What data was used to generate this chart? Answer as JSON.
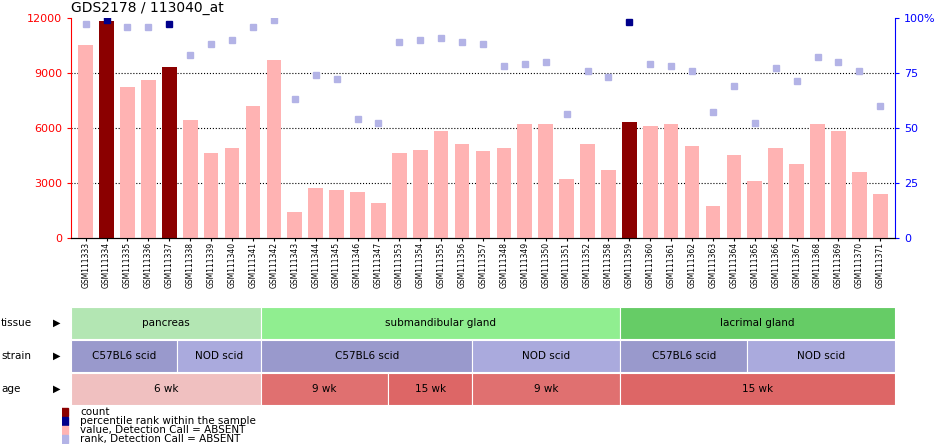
{
  "title": "GDS2178 / 113040_at",
  "samples": [
    "GSM111333",
    "GSM111334",
    "GSM111335",
    "GSM111336",
    "GSM111337",
    "GSM111338",
    "GSM111339",
    "GSM111340",
    "GSM111341",
    "GSM111342",
    "GSM111343",
    "GSM111344",
    "GSM111345",
    "GSM111346",
    "GSM111347",
    "GSM111353",
    "GSM111354",
    "GSM111355",
    "GSM111356",
    "GSM111357",
    "GSM111348",
    "GSM111349",
    "GSM111350",
    "GSM111351",
    "GSM111352",
    "GSM111358",
    "GSM111359",
    "GSM111360",
    "GSM111361",
    "GSM111362",
    "GSM111363",
    "GSM111364",
    "GSM111365",
    "GSM111366",
    "GSM111367",
    "GSM111368",
    "GSM111369",
    "GSM111370",
    "GSM111371"
  ],
  "bar_values": [
    10500,
    11800,
    8200,
    8600,
    9300,
    6400,
    4600,
    4900,
    7200,
    9700,
    1400,
    2700,
    2600,
    2500,
    1900,
    4600,
    4800,
    5800,
    5100,
    4700,
    4900,
    6200,
    6200,
    3200,
    5100,
    3700,
    6300,
    6100,
    6200,
    5000,
    1700,
    4500,
    3100,
    4900,
    4000,
    6200,
    5800,
    3600,
    2400
  ],
  "bar_highlight": [
    false,
    true,
    false,
    false,
    true,
    false,
    false,
    false,
    false,
    false,
    false,
    false,
    false,
    false,
    false,
    false,
    false,
    false,
    false,
    false,
    false,
    false,
    false,
    false,
    false,
    false,
    true,
    false,
    false,
    false,
    false,
    false,
    false,
    false,
    false,
    false,
    false,
    false,
    false
  ],
  "rank_values": [
    97,
    99,
    96,
    96,
    97,
    83,
    88,
    90,
    96,
    99,
    63,
    74,
    72,
    54,
    52,
    89,
    90,
    91,
    89,
    88,
    78,
    79,
    80,
    56,
    76,
    73,
    98,
    79,
    78,
    76,
    57,
    69,
    52,
    77,
    71,
    82,
    80,
    76,
    60
  ],
  "rank_highlight": [
    false,
    true,
    false,
    false,
    true,
    false,
    false,
    false,
    false,
    false,
    false,
    false,
    false,
    false,
    false,
    false,
    false,
    false,
    false,
    false,
    false,
    false,
    false,
    false,
    false,
    false,
    true,
    false,
    false,
    false,
    false,
    false,
    false,
    false,
    false,
    false,
    false,
    false,
    false
  ],
  "ylim_left": [
    0,
    12000
  ],
  "ylim_right": [
    0,
    100
  ],
  "yticks_left": [
    0,
    3000,
    6000,
    9000,
    12000
  ],
  "yticks_right": [
    0,
    25,
    50,
    75,
    100
  ],
  "bar_normal_color": "#ffb3b3",
  "bar_highlight_color": "#8b0000",
  "rank_normal_color": "#b3b3e6",
  "rank_highlight_color": "#00008b",
  "tissue_groups": [
    {
      "label": "pancreas",
      "start": 0,
      "end": 9,
      "color": "#b3e6b3"
    },
    {
      "label": "submandibular gland",
      "start": 9,
      "end": 26,
      "color": "#90ee90"
    },
    {
      "label": "lacrimal gland",
      "start": 26,
      "end": 39,
      "color": "#66cc66"
    }
  ],
  "strain_groups": [
    {
      "label": "C57BL6 scid",
      "start": 0,
      "end": 5,
      "color": "#9999cc"
    },
    {
      "label": "NOD scid",
      "start": 5,
      "end": 9,
      "color": "#aaaadd"
    },
    {
      "label": "C57BL6 scid",
      "start": 9,
      "end": 19,
      "color": "#9999cc"
    },
    {
      "label": "NOD scid",
      "start": 19,
      "end": 26,
      "color": "#aaaadd"
    },
    {
      "label": "C57BL6 scid",
      "start": 26,
      "end": 32,
      "color": "#9999cc"
    },
    {
      "label": "NOD scid",
      "start": 32,
      "end": 39,
      "color": "#aaaadd"
    }
  ],
  "age_groups": [
    {
      "label": "6 wk",
      "start": 0,
      "end": 9,
      "color": "#f0c0c0"
    },
    {
      "label": "9 wk",
      "start": 9,
      "end": 15,
      "color": "#e07070"
    },
    {
      "label": "15 wk",
      "start": 15,
      "end": 19,
      "color": "#dd6666"
    },
    {
      "label": "9 wk",
      "start": 19,
      "end": 26,
      "color": "#e07070"
    },
    {
      "label": "15 wk",
      "start": 26,
      "end": 39,
      "color": "#dd6666"
    }
  ],
  "legend_items": [
    {
      "color": "#8b0000",
      "label": "count"
    },
    {
      "color": "#00008b",
      "label": "percentile rank within the sample"
    },
    {
      "color": "#ffb3b3",
      "label": "value, Detection Call = ABSENT"
    },
    {
      "color": "#b3b3e6",
      "label": "rank, Detection Call = ABSENT"
    }
  ]
}
